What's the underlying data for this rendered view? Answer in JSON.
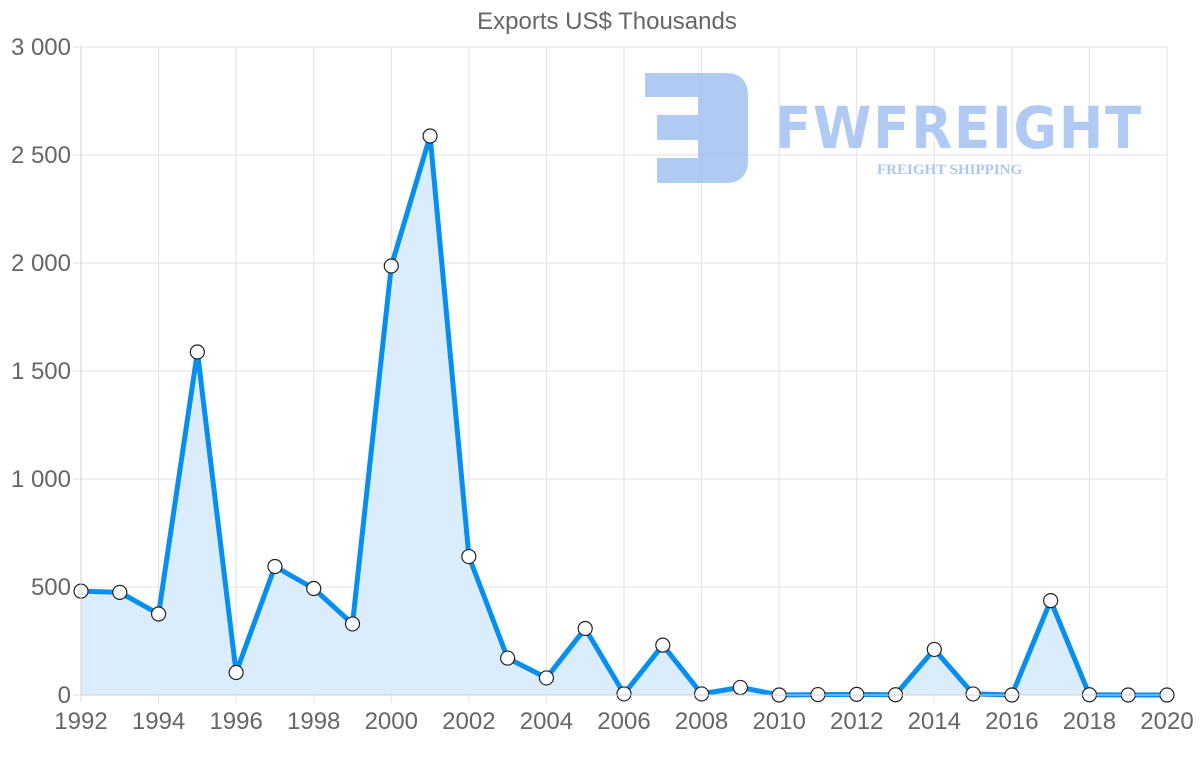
{
  "chart_data": {
    "type": "area",
    "title": "Exports US$ Thousands",
    "xlabel": "",
    "ylabel": "",
    "x": [
      1992,
      1993,
      1994,
      1995,
      1996,
      1997,
      1998,
      1999,
      2000,
      2001,
      2002,
      2003,
      2004,
      2005,
      2006,
      2007,
      2008,
      2009,
      2010,
      2011,
      2012,
      2013,
      2014,
      2015,
      2016,
      2017,
      2018,
      2019,
      2020
    ],
    "series": [
      {
        "name": "Exports US$ Thousands",
        "values": [
          481,
          475,
          375,
          1588,
          104,
          595,
          493,
          329,
          1986,
          2588,
          641,
          171,
          79,
          308,
          5,
          231,
          5,
          35,
          0,
          2,
          3,
          1,
          211,
          5,
          0,
          437,
          1,
          0,
          0
        ],
        "color": "#068ff0",
        "fill": "#d9ecfd"
      }
    ],
    "ylim": [
      0,
      3000
    ],
    "y_ticks": [
      0,
      500,
      1000,
      1500,
      2000,
      2500,
      3000
    ],
    "y_tick_labels": [
      "0",
      "500",
      "1 000",
      "1 500",
      "2 000",
      "2 500",
      "3 000"
    ],
    "x_tick_labels": [
      "1992",
      "1994",
      "1996",
      "1998",
      "2000",
      "2002",
      "2004",
      "2006",
      "2008",
      "2010",
      "2012",
      "2014",
      "2016",
      "2018",
      "2020"
    ],
    "grid": true,
    "legend": "none"
  },
  "watermark": {
    "brand": "FWFREIGHT",
    "tagline": "FREIGHT SHIPPING",
    "color": "#a9c6f2"
  }
}
